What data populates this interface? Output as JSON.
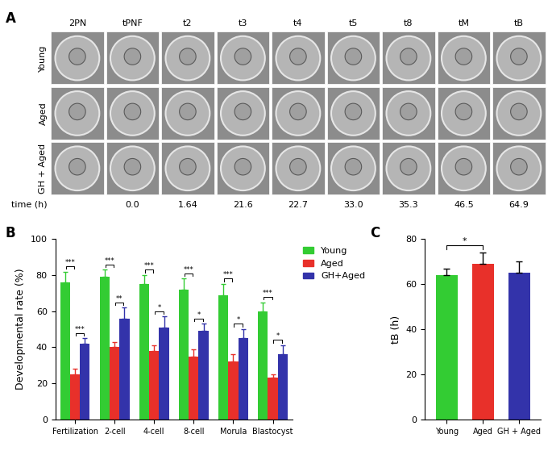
{
  "image_grid": {
    "panel_label": "A",
    "columns": [
      "2PN",
      "tPNF",
      "t2",
      "t3",
      "t4",
      "t5",
      "t8",
      "tM",
      "tB"
    ],
    "rows": [
      "Young",
      "Aged",
      "GH + Aged"
    ],
    "time_label": "time (h)",
    "times": [
      "0.0",
      "1.64",
      "21.6",
      "22.7",
      "33.0",
      "35.3",
      "46.5",
      "64.9"
    ]
  },
  "chart_data": [
    {
      "type": "bar",
      "panel_label": "B",
      "ylabel": "Developmental rate (%)",
      "categories": [
        "Fertilization",
        "2-cell",
        "4-cell",
        "8-cell",
        "Morula",
        "Blastocyst"
      ],
      "series": [
        {
          "name": "Young",
          "color": "#33cc33",
          "values": [
            76,
            79,
            75,
            72,
            69,
            60
          ],
          "errors": [
            6,
            4,
            5,
            6,
            6,
            5
          ]
        },
        {
          "name": "Aged",
          "color": "#e8302a",
          "values": [
            25,
            40,
            38,
            35,
            32,
            23
          ],
          "errors": [
            3,
            3,
            3,
            4,
            4,
            2
          ]
        },
        {
          "name": "GH+Aged",
          "color": "#3333aa",
          "values": [
            42,
            56,
            51,
            49,
            45,
            36
          ],
          "errors": [
            3,
            6,
            6,
            4,
            5,
            5
          ]
        }
      ],
      "annotations": [
        {
          "category": "Fertilization",
          "from": "Young",
          "to": "Aged",
          "text": "***"
        },
        {
          "category": "Fertilization",
          "from": "Aged",
          "to": "GH+Aged",
          "text": "***"
        },
        {
          "category": "2-cell",
          "from": "Young",
          "to": "Aged",
          "text": "***"
        },
        {
          "category": "2-cell",
          "from": "Aged",
          "to": "GH+Aged",
          "text": "**"
        },
        {
          "category": "4-cell",
          "from": "Young",
          "to": "Aged",
          "text": "***"
        },
        {
          "category": "4-cell",
          "from": "Aged",
          "to": "GH+Aged",
          "text": "*"
        },
        {
          "category": "8-cell",
          "from": "Young",
          "to": "Aged",
          "text": "***"
        },
        {
          "category": "8-cell",
          "from": "Aged",
          "to": "GH+Aged",
          "text": "*"
        },
        {
          "category": "Morula",
          "from": "Young",
          "to": "Aged",
          "text": "***"
        },
        {
          "category": "Morula",
          "from": "Aged",
          "to": "GH+Aged",
          "text": "*"
        },
        {
          "category": "Blastocyst",
          "from": "Young",
          "to": "Aged",
          "text": "***"
        },
        {
          "category": "Blastocyst",
          "from": "Aged",
          "to": "GH+Aged",
          "text": "*"
        }
      ],
      "ylim": [
        0,
        100
      ],
      "yticks": [
        0,
        20,
        40,
        60,
        80,
        100
      ],
      "legend": "upper right"
    },
    {
      "type": "bar",
      "panel_label": "C",
      "ylabel": "tB (h)",
      "categories": [
        "Young",
        "Aged",
        "GH + Aged"
      ],
      "values": [
        64,
        69,
        65
      ],
      "errors": [
        3,
        5,
        5
      ],
      "colors": [
        "#33cc33",
        "#e8302a",
        "#3333aa"
      ],
      "annotations": [
        {
          "from": "Young",
          "to": "Aged",
          "text": "*"
        }
      ],
      "ylim": [
        0,
        80
      ],
      "yticks": [
        0,
        20,
        40,
        60,
        80
      ]
    }
  ]
}
